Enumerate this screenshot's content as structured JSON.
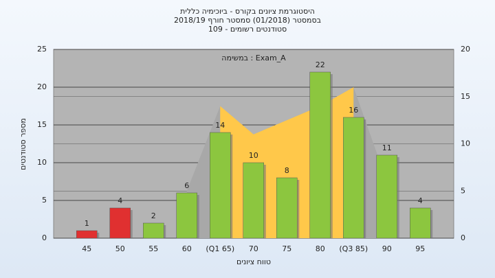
{
  "chart_data": {
    "type": "bar",
    "title": [
      "היסטוגרמת ציונים בקורס - ביוכימיה כללית",
      "בסמסטר  (01/2018)  סמסטר חורף 2018/19",
      "סטודנטים רשומים - 109"
    ],
    "annotation": "במשימה : Exam_A",
    "x_label": "טווח ציונים",
    "y_label": "מספר סטודנטים",
    "categories": [
      "45",
      "50",
      "55",
      "60",
      "(Q1 65)",
      "70",
      "75",
      "80",
      "(Q3 85)",
      "90",
      "95"
    ],
    "series": [
      {
        "type": "bar",
        "colors": [
          "#e03030",
          "#e03030",
          "#8cc63f",
          "#8cc63f",
          "#8cc63f",
          "#8cc63f",
          "#8cc63f",
          "#8cc63f",
          "#8cc63f",
          "#8cc63f",
          "#8cc63f"
        ],
        "values": [
          1,
          4,
          2,
          6,
          14,
          10,
          8,
          22,
          16,
          11,
          4
        ]
      },
      {
        "type": "area",
        "axis": "y2",
        "color": "#a8a8a8",
        "values": [
          null,
          null,
          null,
          5,
          14,
          11,
          12.5,
          14,
          16,
          6,
          null
        ]
      },
      {
        "type": "area",
        "axis": "y2",
        "color": "#ffc84a",
        "values": [
          null,
          null,
          null,
          null,
          14,
          11,
          12.5,
          14,
          16,
          null,
          null
        ]
      }
    ],
    "ylim": [
      0,
      25
    ],
    "yticks": [
      0,
      5,
      10,
      15,
      20,
      25
    ],
    "y2lim": [
      0,
      20
    ],
    "y2ticks": [
      0,
      5,
      10,
      15,
      20
    ],
    "grid": true
  }
}
